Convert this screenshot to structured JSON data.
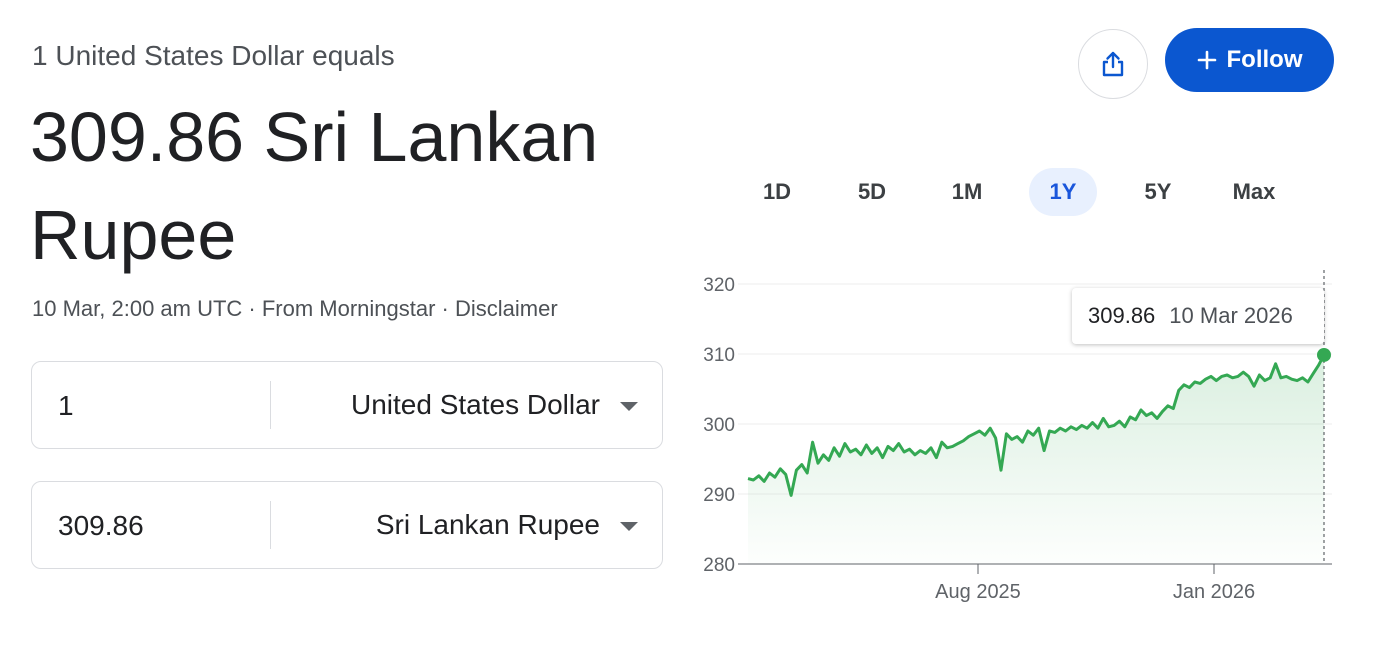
{
  "header": {
    "subtitle": "1 United States Dollar equals",
    "result_line1": "309.86 Sri Lankan",
    "result_line2": "Rupee",
    "meta": "10 Mar, 2:00 am UTC · From Morningstar · Disclaimer"
  },
  "actions": {
    "share_icon": "share-icon",
    "follow_label": "Follow",
    "follow_icon": "plus-icon"
  },
  "converter": {
    "from": {
      "amount": "1",
      "currency": "United States Dollar"
    },
    "to": {
      "amount": "309.86",
      "currency": "Sri Lankan Rupee"
    }
  },
  "ranges": {
    "items": [
      "1D",
      "5D",
      "1M",
      "1Y",
      "5Y",
      "Max"
    ],
    "selected": "1Y"
  },
  "tooltip": {
    "value": "309.86",
    "date": "10 Mar 2026"
  },
  "colors": {
    "line": "#34a853",
    "accent": "#0b57d0",
    "selected_range": "#e8f0fe"
  },
  "chart_data": {
    "type": "line",
    "ylim": [
      280,
      320
    ],
    "yticks": [
      "320",
      "310",
      "300",
      "290",
      "280"
    ],
    "xtick_labels": [
      "Aug 2025",
      "Jan 2026"
    ],
    "x_range": [
      "Mar 2025",
      "Mar 2026"
    ],
    "grid": true,
    "series": [
      {
        "values": [
          292.2,
          292.0,
          292.6,
          291.8,
          293.0,
          292.4,
          293.6,
          292.8,
          289.8,
          293.4,
          294.2,
          293.0,
          297.4,
          294.4,
          295.6,
          294.8,
          296.6,
          295.4,
          297.2,
          296.0,
          296.4,
          295.6,
          297.0,
          295.8,
          296.6,
          295.2,
          296.8,
          296.2,
          297.2,
          296.0,
          296.4,
          295.6,
          296.2,
          295.8,
          296.6,
          295.2,
          297.4,
          296.6,
          296.8,
          297.2,
          297.6,
          298.2,
          298.6,
          299.0,
          298.4,
          299.4,
          298.0,
          293.4,
          298.6,
          297.8,
          298.2,
          297.4,
          299.0,
          298.4,
          299.4,
          296.2,
          299.0,
          298.8,
          299.4,
          299.0,
          299.6,
          299.2,
          299.8,
          299.4,
          300.2,
          299.4,
          300.8,
          299.6,
          299.8,
          300.4,
          299.6,
          301.0,
          300.6,
          302.0,
          301.2,
          301.6,
          300.8,
          301.8,
          302.6,
          302.2,
          304.8,
          305.6,
          305.2,
          306.0,
          305.8,
          306.4,
          306.8,
          306.2,
          306.8,
          307.0,
          306.6,
          306.8,
          307.4,
          306.8,
          305.4,
          307.0,
          306.2,
          306.6,
          308.6,
          306.6,
          306.8,
          306.4,
          306.2,
          306.6,
          306.0,
          307.2,
          308.4,
          309.86
        ]
      }
    ]
  }
}
